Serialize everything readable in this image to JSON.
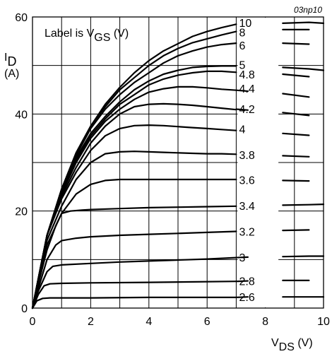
{
  "chart_data": {
    "type": "line",
    "watermark": "03np10",
    "annotation": {
      "prefix": "Label is V",
      "sub": "GS",
      "suffix": " (V)"
    },
    "ylabel": {
      "main": "I",
      "sub": "D",
      "unit": "(A)"
    },
    "xlabel": {
      "main": "V",
      "sub": "DS",
      "unit": " (V)"
    },
    "xlim": [
      0,
      10
    ],
    "ylim": [
      0,
      60
    ],
    "xticks": [
      "0",
      "2",
      "4",
      "6",
      "8",
      "10"
    ],
    "yticks": [
      "0",
      "20",
      "40",
      "60"
    ],
    "grid": true,
    "series": [
      {
        "name": "10",
        "left": [
          [
            0,
            0
          ],
          [
            0.2,
            6
          ],
          [
            0.5,
            15
          ],
          [
            1,
            24.5
          ],
          [
            1.5,
            32
          ],
          [
            2,
            37.5
          ],
          [
            2.5,
            42
          ],
          [
            3,
            45.5
          ],
          [
            3.5,
            48.5
          ],
          [
            4,
            51
          ],
          [
            4.5,
            53
          ],
          [
            5,
            54.5
          ],
          [
            5.5,
            56
          ],
          [
            6,
            57
          ],
          [
            6.5,
            57.8
          ],
          [
            7,
            58.5
          ]
        ],
        "right": [
          [
            8.6,
            58.7
          ],
          [
            9.5,
            58.9
          ],
          [
            10,
            58.7
          ]
        ]
      },
      {
        "name": "8",
        "left": [
          [
            0,
            0
          ],
          [
            0.2,
            6
          ],
          [
            0.5,
            15
          ],
          [
            1,
            24.5
          ],
          [
            1.5,
            32
          ],
          [
            2,
            37.5
          ],
          [
            2.5,
            41.5
          ],
          [
            3,
            45
          ],
          [
            3.5,
            47.5
          ],
          [
            4,
            50
          ],
          [
            4.5,
            52
          ],
          [
            5,
            53.5
          ],
          [
            5.5,
            54.7
          ],
          [
            6,
            55.5
          ],
          [
            6.5,
            56.3
          ],
          [
            7,
            57
          ]
        ],
        "right": [
          [
            8.6,
            57.4
          ],
          [
            9.5,
            57.4
          ]
        ]
      },
      {
        "name": "6",
        "left": [
          [
            0,
            0
          ],
          [
            0.2,
            6
          ],
          [
            0.5,
            15
          ],
          [
            1,
            24.5
          ],
          [
            1.5,
            31.5
          ],
          [
            2,
            37
          ],
          [
            2.5,
            41
          ],
          [
            3,
            44
          ],
          [
            3.5,
            46.5
          ],
          [
            4,
            48.5
          ],
          [
            4.5,
            50.5
          ],
          [
            5,
            52
          ],
          [
            5.5,
            53
          ],
          [
            6,
            53.8
          ],
          [
            6.5,
            54.3
          ],
          [
            7,
            54.6
          ]
        ],
        "right": [
          [
            8.6,
            54.6
          ],
          [
            9.5,
            54.4
          ]
        ]
      },
      {
        "name": "5",
        "left": [
          [
            0,
            0
          ],
          [
            0.2,
            6
          ],
          [
            0.5,
            15
          ],
          [
            1,
            24
          ],
          [
            1.5,
            31
          ],
          [
            2,
            36
          ],
          [
            2.5,
            39.5
          ],
          [
            3,
            42.5
          ],
          [
            3.5,
            45
          ],
          [
            4,
            46.8
          ],
          [
            4.5,
            48.2
          ],
          [
            5,
            49
          ],
          [
            5.5,
            49.6
          ],
          [
            6,
            49.8
          ],
          [
            6.5,
            49.9
          ],
          [
            7,
            49.9
          ]
        ],
        "right": [
          [
            8.6,
            49.6
          ],
          [
            9.5,
            49.3
          ],
          [
            10,
            49
          ]
        ]
      },
      {
        "name": "4.8",
        "left": [
          [
            0,
            0
          ],
          [
            0.2,
            6
          ],
          [
            0.5,
            15
          ],
          [
            1,
            24
          ],
          [
            1.5,
            30.5
          ],
          [
            2,
            35.5
          ],
          [
            2.5,
            39
          ],
          [
            3,
            42
          ],
          [
            3.5,
            44
          ],
          [
            4,
            46
          ],
          [
            4.5,
            47.2
          ],
          [
            5,
            48
          ],
          [
            5.5,
            48.5
          ],
          [
            6,
            48.8
          ],
          [
            6.5,
            48.8
          ],
          [
            7,
            48.6
          ]
        ],
        "right": [
          [
            8.6,
            48.2
          ],
          [
            9.5,
            47.7
          ]
        ]
      },
      {
        "name": "4.4",
        "left": [
          [
            0,
            0
          ],
          [
            0.2,
            6
          ],
          [
            0.5,
            15
          ],
          [
            1,
            23.5
          ],
          [
            1.5,
            30
          ],
          [
            2,
            35
          ],
          [
            2.5,
            38.5
          ],
          [
            3,
            41
          ],
          [
            3.5,
            43
          ],
          [
            4,
            44.5
          ],
          [
            4.5,
            45.2
          ],
          [
            5,
            45.6
          ],
          [
            5.5,
            45.6
          ],
          [
            6,
            45.4
          ],
          [
            6.5,
            45.1
          ],
          [
            7,
            44.9
          ]
        ],
        "right": [
          [
            8.6,
            44.2
          ],
          [
            9.5,
            43.5
          ]
        ]
      },
      {
        "name": "4.2",
        "left": [
          [
            0,
            0
          ],
          [
            0.2,
            6
          ],
          [
            0.5,
            15
          ],
          [
            1,
            23
          ],
          [
            1.5,
            29
          ],
          [
            2,
            34
          ],
          [
            2.5,
            37.5
          ],
          [
            3,
            40
          ],
          [
            3.5,
            41.5
          ],
          [
            4,
            42
          ],
          [
            4.5,
            42.1
          ],
          [
            5,
            42
          ],
          [
            5.5,
            41.8
          ],
          [
            6,
            41.5
          ],
          [
            6.5,
            41.2
          ],
          [
            7,
            40.9
          ]
        ],
        "right": [
          [
            8.6,
            40.3
          ],
          [
            9.5,
            39.7
          ]
        ]
      },
      {
        "name": "4",
        "left": [
          [
            0,
            0
          ],
          [
            0.2,
            6
          ],
          [
            0.5,
            15
          ],
          [
            1,
            22.5
          ],
          [
            1.5,
            28
          ],
          [
            2,
            32.5
          ],
          [
            2.5,
            35.5
          ],
          [
            3,
            37
          ],
          [
            3.5,
            37.6
          ],
          [
            4,
            37.7
          ],
          [
            4.5,
            37.6
          ],
          [
            5,
            37.4
          ],
          [
            5.5,
            37.2
          ],
          [
            6,
            37
          ],
          [
            6.5,
            36.8
          ],
          [
            7,
            36.6
          ]
        ],
        "right": [
          [
            8.6,
            36
          ],
          [
            9.5,
            35.6
          ]
        ]
      },
      {
        "name": "3.8",
        "left": [
          [
            0,
            0
          ],
          [
            0.2,
            5.5
          ],
          [
            0.5,
            14
          ],
          [
            1,
            21
          ],
          [
            1.5,
            26.5
          ],
          [
            2,
            30
          ],
          [
            2.5,
            31.8
          ],
          [
            3,
            32.2
          ],
          [
            3.5,
            32.3
          ],
          [
            4,
            32.2
          ],
          [
            4.5,
            32.1
          ],
          [
            5,
            32
          ],
          [
            5.5,
            31.9
          ],
          [
            6,
            31.8
          ],
          [
            6.5,
            31.8
          ],
          [
            7,
            31.7
          ]
        ],
        "right": [
          [
            8.6,
            31.4
          ],
          [
            9.5,
            31.2
          ]
        ]
      },
      {
        "name": "3.6",
        "left": [
          [
            0,
            0
          ],
          [
            0.2,
            5.5
          ],
          [
            0.5,
            13
          ],
          [
            1,
            19.5
          ],
          [
            1.5,
            23.5
          ],
          [
            2,
            25.5
          ],
          [
            2.5,
            26.3
          ],
          [
            3,
            26.5
          ],
          [
            4,
            26.5
          ],
          [
            5,
            26.5
          ],
          [
            6,
            26.5
          ],
          [
            7,
            26.5
          ]
        ],
        "right": [
          [
            8.6,
            26.3
          ],
          [
            9.5,
            26.2
          ]
        ]
      },
      {
        "name": "3.4",
        "left": [
          [
            0,
            0
          ],
          [
            0.2,
            5
          ],
          [
            0.5,
            12
          ],
          [
            0.8,
            17
          ],
          [
            1,
            19.5
          ],
          [
            1.3,
            20
          ],
          [
            1.7,
            20.2
          ],
          [
            2,
            20.3
          ],
          [
            3,
            20.5
          ],
          [
            4,
            20.7
          ],
          [
            5,
            20.8
          ],
          [
            6,
            20.9
          ],
          [
            7,
            21
          ]
        ],
        "right": [
          [
            8.6,
            21.2
          ],
          [
            9.5,
            21.3
          ],
          [
            10,
            21.4
          ]
        ]
      },
      {
        "name": "3.2",
        "left": [
          [
            0,
            0
          ],
          [
            0.2,
            4
          ],
          [
            0.5,
            10
          ],
          [
            0.8,
            13
          ],
          [
            1,
            13.9
          ],
          [
            1.5,
            14.4
          ],
          [
            2,
            14.7
          ],
          [
            3,
            15
          ],
          [
            4,
            15.2
          ],
          [
            5,
            15.4
          ],
          [
            6,
            15.6
          ],
          [
            7,
            15.8
          ]
        ],
        "right": [
          [
            8.6,
            16
          ],
          [
            9.5,
            16.1
          ]
        ]
      },
      {
        "name": "3",
        "left": [
          [
            0,
            0
          ],
          [
            0.2,
            3.5
          ],
          [
            0.5,
            7.5
          ],
          [
            0.7,
            8.6
          ],
          [
            1,
            8.9
          ],
          [
            2,
            9.2
          ],
          [
            3,
            9.5
          ],
          [
            4,
            9.7
          ],
          [
            5,
            9.9
          ],
          [
            6,
            10.1
          ],
          [
            7,
            10.4
          ]
        ],
        "right": [
          [
            8.6,
            10.6
          ],
          [
            9.5,
            10.7
          ],
          [
            10,
            10.7
          ]
        ]
      },
      {
        "name": "2.8",
        "left": [
          [
            0,
            0
          ],
          [
            0.2,
            2.8
          ],
          [
            0.4,
            4.6
          ],
          [
            0.6,
            5
          ],
          [
            1,
            5.1
          ],
          [
            2,
            5.2
          ],
          [
            4,
            5.3
          ],
          [
            7,
            5.5
          ]
        ],
        "right": [
          [
            8.6,
            5.7
          ],
          [
            9.5,
            5.7
          ]
        ]
      },
      {
        "name": "2.6",
        "left": [
          [
            0,
            0
          ],
          [
            0.15,
            1.5
          ],
          [
            0.35,
            2
          ],
          [
            0.6,
            2.1
          ],
          [
            2,
            2.1
          ],
          [
            4,
            2.2
          ],
          [
            7,
            2.2
          ]
        ],
        "right": [
          [
            8.6,
            2.3
          ],
          [
            10,
            2.3
          ]
        ]
      }
    ],
    "tail_markers": [
      [
        7,
        2.2,
        7.4,
        2.3
      ],
      [
        7,
        5.5,
        7.4,
        5.6
      ],
      [
        7,
        10.4,
        7.4,
        10.5
      ],
      [
        7,
        41,
        7.4,
        40.8
      ],
      [
        7,
        44.9,
        7.4,
        44.7
      ]
    ],
    "label_y": {
      "10": 58.8,
      "8": 56.9,
      "6": 54.2,
      "5": 50.2,
      "4.8": 48.2,
      "4.4": 45.3,
      "4.2": 41.1,
      "4": 36.9,
      "3.8": 31.6,
      "3.6": 26.4,
      "3.4": 21.1,
      "3.2": 15.8,
      "3": 10.5,
      "2.8": 5.6,
      "2.6": 2.3
    }
  }
}
